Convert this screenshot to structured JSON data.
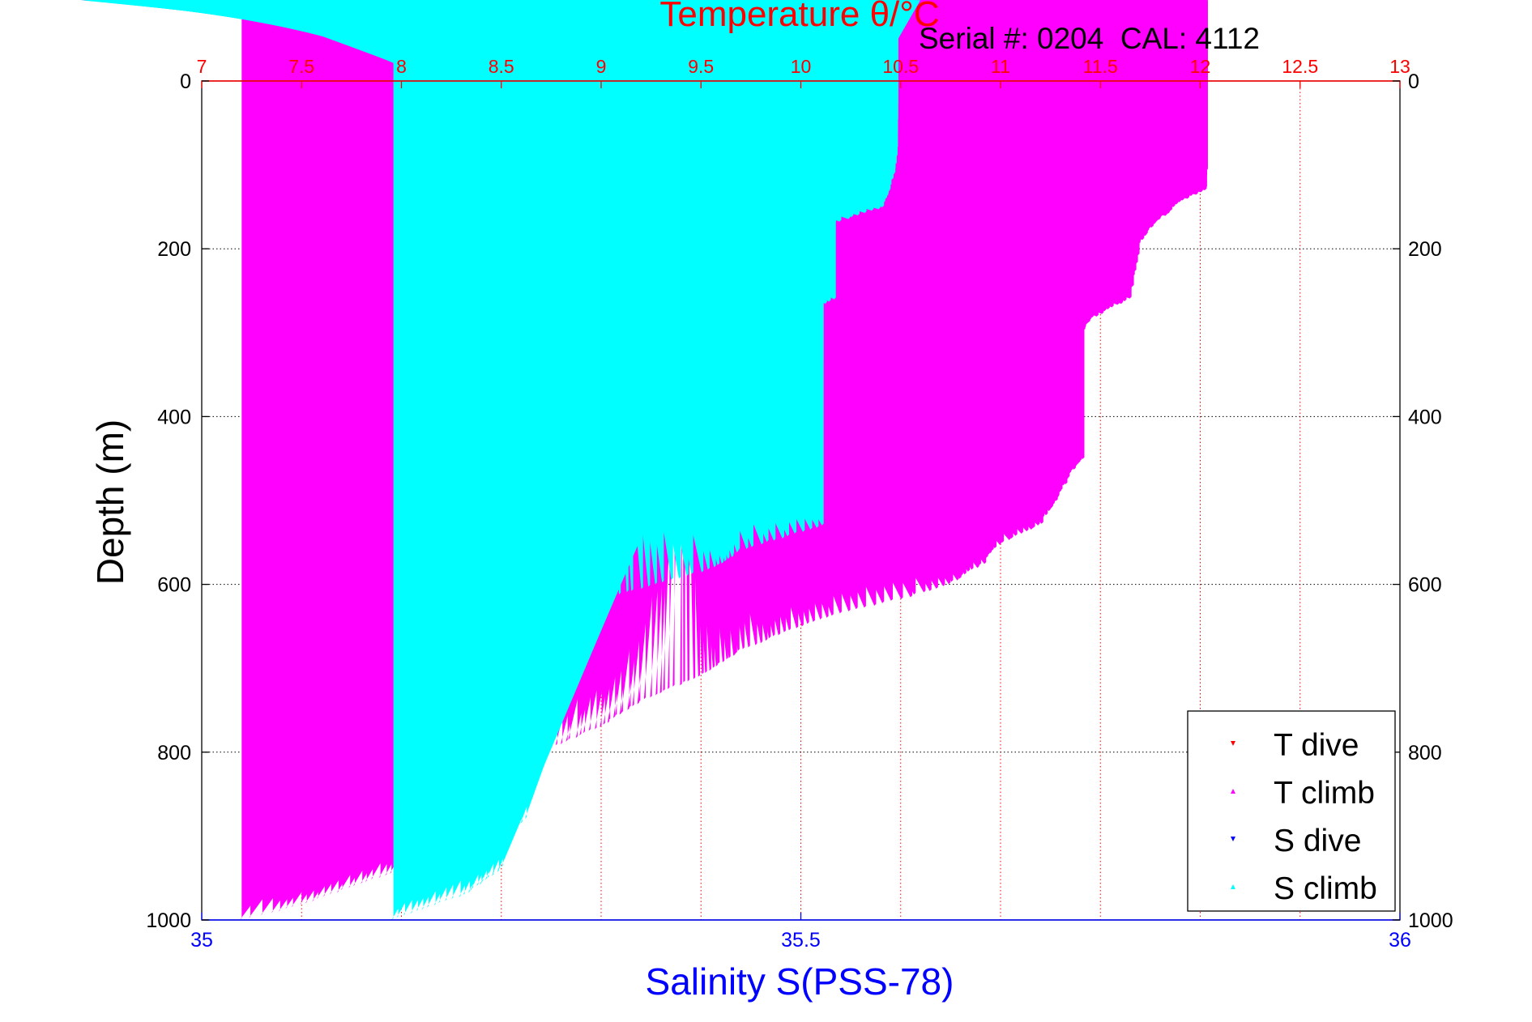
{
  "chart_data": {
    "type": "scatter",
    "title": "Temperature θ/°C",
    "subtitle": "Serial #: 0204  CAL: 4112",
    "xlabel": "Salinity S(PSS-78)",
    "ylabel": "Depth (m)",
    "ylim": [
      0,
      1000
    ],
    "y_reversed": true,
    "y_ticks": [
      "0",
      "200",
      "400",
      "600",
      "800",
      "1000"
    ],
    "x_top": {
      "label": "Temperature θ/°C",
      "range": [
        7,
        13
      ],
      "ticks": [
        "7",
        "7.5",
        "8",
        "8.5",
        "9",
        "9.5",
        "10",
        "10.5",
        "11",
        "11.5",
        "12",
        "12.5",
        "13"
      ]
    },
    "x_bottom": {
      "label": "Salinity S(PSS-78)",
      "range": [
        35,
        36
      ],
      "ticks": [
        "35",
        "35.5",
        "36"
      ]
    },
    "grid": true,
    "legend_position": "bottom-right",
    "series": [
      {
        "name": "T dive",
        "axis": "temperature",
        "color": "#ff0000",
        "marker": "triangle-down",
        "points": [
          [
            12.0,
            0
          ],
          [
            12.0,
            50
          ],
          [
            12.02,
            100
          ],
          [
            12.02,
            150
          ],
          [
            12.02,
            180
          ],
          [
            11.99,
            200
          ],
          [
            11.95,
            220
          ],
          [
            11.8,
            235
          ],
          [
            11.65,
            250
          ],
          [
            11.62,
            270
          ],
          [
            11.55,
            285
          ],
          [
            11.45,
            300
          ],
          [
            11.4,
            330
          ],
          [
            11.38,
            350
          ],
          [
            11.36,
            380
          ],
          [
            11.36,
            420
          ],
          [
            11.33,
            450
          ],
          [
            11.2,
            490
          ],
          [
            11.17,
            520
          ],
          [
            11.2,
            550
          ],
          [
            11.13,
            570
          ],
          [
            11.0,
            590
          ],
          [
            10.88,
            610
          ],
          [
            10.65,
            630
          ],
          [
            10.45,
            650
          ],
          [
            10.1,
            665
          ],
          [
            9.8,
            680
          ],
          [
            9.6,
            700
          ],
          [
            9.4,
            720
          ],
          [
            9.1,
            750
          ],
          [
            8.95,
            780
          ],
          [
            8.8,
            810
          ],
          [
            8.6,
            840
          ],
          [
            8.45,
            860
          ],
          [
            8.4,
            880
          ],
          [
            8.3,
            900
          ],
          [
            8.1,
            925
          ],
          [
            7.9,
            950
          ],
          [
            7.7,
            970
          ],
          [
            7.5,
            985
          ],
          [
            7.25,
            995
          ]
        ]
      },
      {
        "name": "T climb",
        "axis": "temperature",
        "color": "#ff00ff",
        "marker": "triangle-up",
        "points": [
          [
            12.0,
            0
          ],
          [
            12.03,
            60
          ],
          [
            12.03,
            130
          ],
          [
            11.9,
            145
          ],
          [
            11.78,
            170
          ],
          [
            11.7,
            195
          ],
          [
            11.67,
            230
          ],
          [
            11.65,
            260
          ],
          [
            11.45,
            285
          ],
          [
            11.4,
            310
          ],
          [
            11.35,
            350
          ],
          [
            11.33,
            380
          ],
          [
            11.35,
            420
          ],
          [
            11.42,
            450
          ],
          [
            11.35,
            470
          ],
          [
            11.28,
            500
          ],
          [
            11.2,
            530
          ],
          [
            10.98,
            555
          ],
          [
            10.92,
            575
          ],
          [
            10.75,
            600
          ],
          [
            10.55,
            615
          ],
          [
            10.2,
            635
          ],
          [
            9.95,
            655
          ],
          [
            9.7,
            680
          ],
          [
            9.5,
            710
          ],
          [
            9.2,
            740
          ],
          [
            9.0,
            770
          ],
          [
            8.7,
            800
          ],
          [
            8.5,
            825
          ],
          [
            8.3,
            850
          ],
          [
            8.25,
            875
          ],
          [
            8.2,
            900
          ],
          [
            8.1,
            920
          ],
          [
            7.95,
            945
          ],
          [
            7.65,
            970
          ],
          [
            7.4,
            990
          ],
          [
            7.2,
            1000
          ]
        ]
      },
      {
        "name": "S dive",
        "axis": "salinity",
        "color": "#0000ff",
        "marker": "triangle-down",
        "points": [
          [
            35.59,
            0
          ],
          [
            35.59,
            100
          ],
          [
            35.59,
            180
          ],
          [
            35.58,
            210
          ],
          [
            35.56,
            240
          ],
          [
            35.53,
            260
          ],
          [
            35.51,
            280
          ],
          [
            35.49,
            300
          ],
          [
            35.46,
            330
          ],
          [
            35.45,
            360
          ],
          [
            35.46,
            390
          ],
          [
            35.48,
            420
          ],
          [
            35.45,
            450
          ],
          [
            35.41,
            480
          ],
          [
            35.41,
            520
          ],
          [
            35.44,
            550
          ],
          [
            35.42,
            570
          ],
          [
            35.38,
            590
          ],
          [
            35.33,
            610
          ],
          [
            35.29,
            630
          ],
          [
            35.28,
            660
          ],
          [
            35.24,
            680
          ],
          [
            35.2,
            700
          ],
          [
            35.23,
            720
          ],
          [
            35.25,
            740
          ],
          [
            35.28,
            770
          ],
          [
            35.3,
            800
          ],
          [
            35.28,
            830
          ],
          [
            35.31,
            860
          ],
          [
            35.33,
            890
          ],
          [
            35.32,
            920
          ],
          [
            35.3,
            950
          ],
          [
            35.3,
            980
          ],
          [
            35.28,
            995
          ]
        ]
      },
      {
        "name": "S climb",
        "axis": "salinity",
        "color": "#00ffff",
        "marker": "triangle-up",
        "points": [
          [
            35.58,
            0
          ],
          [
            35.58,
            100
          ],
          [
            35.57,
            150
          ],
          [
            35.53,
            170
          ],
          [
            35.52,
            200
          ],
          [
            35.52,
            230
          ],
          [
            35.53,
            260
          ],
          [
            35.48,
            290
          ],
          [
            35.45,
            330
          ],
          [
            35.44,
            370
          ],
          [
            35.45,
            410
          ],
          [
            35.48,
            440
          ],
          [
            35.51,
            470
          ],
          [
            35.47,
            500
          ],
          [
            35.52,
            530
          ],
          [
            35.45,
            560
          ],
          [
            35.43,
            580
          ],
          [
            35.38,
            600
          ],
          [
            35.33,
            620
          ],
          [
            35.24,
            640
          ],
          [
            35.27,
            670
          ],
          [
            35.3,
            700
          ],
          [
            35.23,
            730
          ],
          [
            35.2,
            760
          ],
          [
            35.18,
            790
          ],
          [
            35.2,
            820
          ],
          [
            35.25,
            850
          ],
          [
            35.27,
            880
          ],
          [
            35.25,
            910
          ],
          [
            35.25,
            940
          ],
          [
            35.22,
            970
          ],
          [
            35.18,
            990
          ],
          [
            35.16,
            1000
          ]
        ]
      }
    ]
  }
}
